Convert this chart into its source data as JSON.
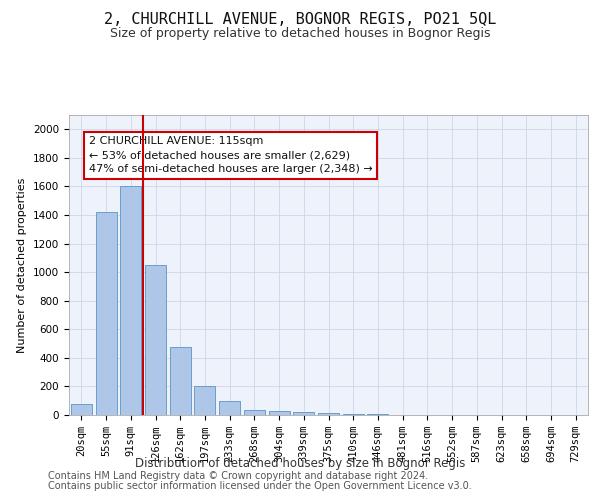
{
  "title": "2, CHURCHILL AVENUE, BOGNOR REGIS, PO21 5QL",
  "subtitle": "Size of property relative to detached houses in Bognor Regis",
  "xlabel": "Distribution of detached houses by size in Bognor Regis",
  "ylabel": "Number of detached properties",
  "bin_labels": [
    "20sqm",
    "55sqm",
    "91sqm",
    "126sqm",
    "162sqm",
    "197sqm",
    "233sqm",
    "268sqm",
    "304sqm",
    "339sqm",
    "375sqm",
    "410sqm",
    "446sqm",
    "481sqm",
    "516sqm",
    "552sqm",
    "587sqm",
    "623sqm",
    "658sqm",
    "694sqm",
    "729sqm"
  ],
  "bar_heights": [
    75,
    1420,
    1600,
    1050,
    475,
    200,
    100,
    35,
    25,
    20,
    15,
    10,
    4,
    2,
    1,
    1,
    0,
    0,
    0,
    0,
    0
  ],
  "bar_color": "#aec6e8",
  "bar_edge_color": "#5a96c8",
  "red_line_color": "#cc0000",
  "annotation_text": "2 CHURCHILL AVENUE: 115sqm\n← 53% of detached houses are smaller (2,629)\n47% of semi-detached houses are larger (2,348) →",
  "ylim": [
    0,
    2100
  ],
  "yticks": [
    0,
    200,
    400,
    600,
    800,
    1000,
    1200,
    1400,
    1600,
    1800,
    2000
  ],
  "footer_line1": "Contains HM Land Registry data © Crown copyright and database right 2024.",
  "footer_line2": "Contains public sector information licensed under the Open Government Licence v3.0.",
  "plot_bg_color": "#eef2fa",
  "fig_bg_color": "#ffffff",
  "title_fontsize": 11,
  "subtitle_fontsize": 9,
  "xlabel_fontsize": 8.5,
  "ylabel_fontsize": 8,
  "tick_fontsize": 7.5,
  "annotation_fontsize": 8,
  "footer_fontsize": 7
}
